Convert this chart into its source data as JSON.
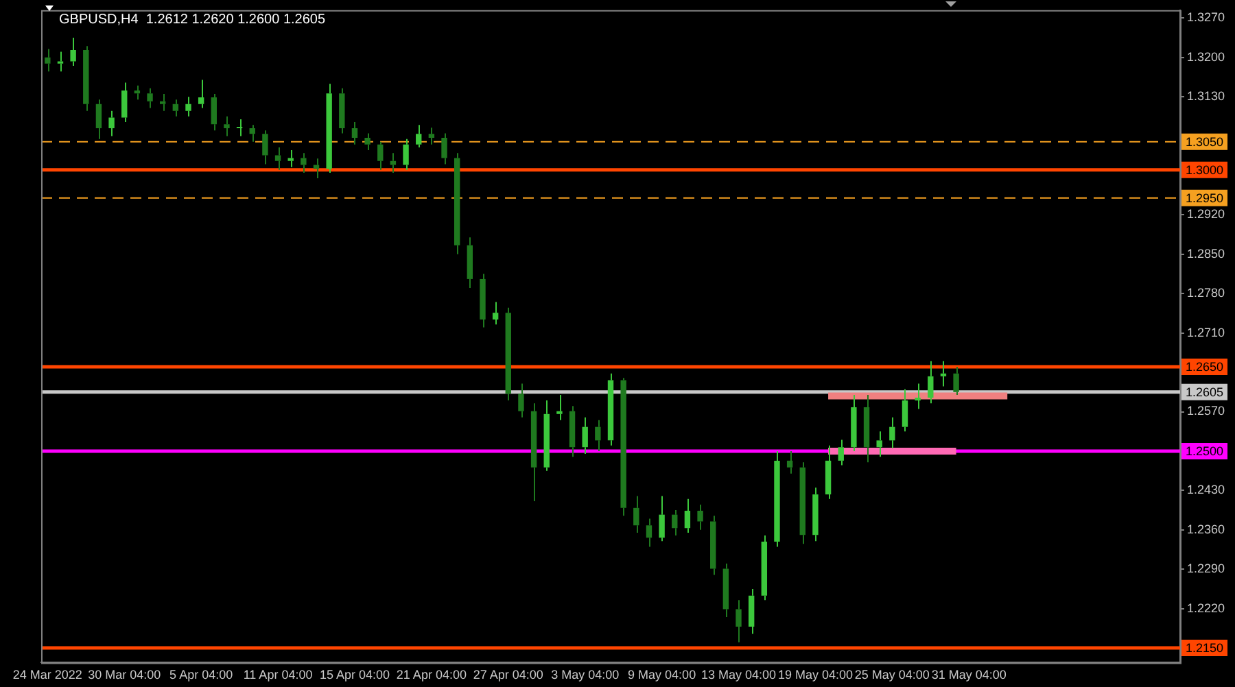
{
  "chart_data": {
    "type": "candlestick",
    "title": "GBPUSD,H4  1.2612 1.2620 1.2600 1.2605",
    "colors": [
      "#1f7a1f",
      "#3cc83c",
      "#3cc83c",
      "#1f7a1f",
      "#1f7a1f",
      "#3cc83c",
      "#3cc83c",
      "#1f7a1f",
      "#1f7a1f",
      "#1f7a1f",
      "#1f7a1f",
      "#3cc83c",
      "#3cc83c",
      "#1f7a1f",
      "#1f7a1f",
      "#3cc83c",
      "#1f7a1f",
      "#1f7a1f",
      "#1f7a1f",
      "#3cc83c",
      "#1f7a1f",
      "#1f7a1f",
      "#3cc83c",
      "#1f7a1f",
      "#1f7a1f",
      "#1f7a1f",
      "#1f7a1f",
      "#1f7a1f",
      "#3cc83c",
      "#3cc83c",
      "#1f7a1f",
      "#1f7a1f",
      "#1f7a1f",
      "#1f7a1f",
      "#1f7a1f",
      "#3cc83c",
      "#1f7a1f",
      "#1f7a1f",
      "#1f7a1f",
      "#3cc83c",
      "#3cc83c",
      "#1f7a1f",
      "#3cc83c",
      "#1f7a1f",
      "#3cc83c",
      "#1f7a1f",
      "#1f7a1f",
      "#1f7a1f",
      "#3cc83c",
      "#1f7a1f",
      "#3cc83c",
      "#1f7a1f",
      "#1f7a1f",
      "#1f7a1f",
      "#1f7a1f",
      "#3cc83c",
      "#3cc83c",
      "#3cc83c",
      "#1f7a1f",
      "#1f7a1f",
      "#3cc83c",
      "#3cc83c",
      "#3cc83c",
      "#3cc83c",
      "#1f7a1f",
      "#3cc83c",
      "#3cc83c",
      "#3cc83c",
      "#3cc83c",
      "#3cc83c",
      "#3cc83c",
      "#1f7a1f",
      null,
      null,
      null,
      null,
      null,
      null,
      null,
      null,
      null,
      null,
      null,
      null,
      null,
      null,
      null,
      null,
      null
    ],
    "categories": [
      "24 Mar 2022",
      null,
      null,
      null,
      null,
      null,
      "30 Mar 04:00",
      null,
      null,
      null,
      null,
      null,
      "5 Apr 04:00",
      null,
      null,
      null,
      null,
      null,
      "11 Apr 04:00",
      null,
      null,
      null,
      null,
      null,
      "15 Apr 04:00",
      null,
      null,
      null,
      null,
      null,
      "21 Apr 04:00",
      null,
      null,
      null,
      null,
      null,
      "27 Apr 04:00",
      null,
      null,
      null,
      null,
      null,
      "3 May 04:00",
      null,
      null,
      null,
      null,
      null,
      "9 May 04:00",
      null,
      null,
      null,
      null,
      null,
      "13 May 04:00",
      null,
      null,
      null,
      null,
      null,
      "19 May 04:00",
      null,
      null,
      null,
      null,
      null,
      "25 May 04:00",
      null,
      null,
      null,
      null,
      null,
      "31 May 04:00",
      null,
      null,
      null,
      null,
      null,
      null,
      null,
      null,
      null,
      null,
      null,
      null,
      null,
      null,
      null,
      null
    ],
    "ohlc": [
      [
        1.32,
        1.3215,
        1.3175,
        1.3189
      ],
      [
        1.3189,
        1.321,
        1.3175,
        1.3193
      ],
      [
        1.3193,
        1.3235,
        1.3185,
        1.3213
      ],
      [
        1.3213,
        1.322,
        1.3105,
        1.3117
      ],
      [
        1.3117,
        1.3125,
        1.3055,
        1.3074
      ],
      [
        1.3074,
        1.3105,
        1.306,
        1.3093
      ],
      [
        1.3093,
        1.3155,
        1.3085,
        1.3141
      ],
      [
        1.3141,
        1.315,
        1.3125,
        1.3136
      ],
      [
        1.3136,
        1.3145,
        1.311,
        1.3122
      ],
      [
        1.3122,
        1.3135,
        1.3105,
        1.3117
      ],
      [
        1.3117,
        1.3125,
        1.3095,
        1.3105
      ],
      [
        1.3105,
        1.313,
        1.3095,
        1.3117
      ],
      [
        1.3117,
        1.316,
        1.311,
        1.3129
      ],
      [
        1.3129,
        1.3135,
        1.307,
        1.3081
      ],
      [
        1.3081,
        1.3095,
        1.306,
        1.3074
      ],
      [
        1.3074,
        1.309,
        1.306,
        1.3074
      ],
      [
        1.3074,
        1.308,
        1.305,
        1.3064
      ],
      [
        1.3064,
        1.307,
        1.301,
        1.3026
      ],
      [
        1.3026,
        1.304,
        1.3,
        1.3016
      ],
      [
        1.3016,
        1.3035,
        1.3005,
        1.3021
      ],
      [
        1.3021,
        1.303,
        1.2995,
        1.3009
      ],
      [
        1.3009,
        1.302,
        1.2985,
        1.3002
      ],
      [
        1.3002,
        1.3153,
        1.2995,
        1.3136
      ],
      [
        1.3136,
        1.3145,
        1.3065,
        1.3074
      ],
      [
        1.3074,
        1.3085,
        1.3045,
        1.3057
      ],
      [
        1.3057,
        1.3065,
        1.3035,
        1.3045
      ],
      [
        1.3045,
        1.305,
        1.3,
        1.3016
      ],
      [
        1.3016,
        1.303,
        1.2995,
        1.3009
      ],
      [
        1.3009,
        1.3055,
        1.3,
        1.3045
      ],
      [
        1.3045,
        1.308,
        1.304,
        1.3064
      ],
      [
        1.3064,
        1.3075,
        1.3045,
        1.3057
      ],
      [
        1.3057,
        1.3065,
        1.301,
        1.3021
      ],
      [
        1.3021,
        1.303,
        1.285,
        1.2866
      ],
      [
        1.2866,
        1.288,
        1.279,
        1.2806
      ],
      [
        1.2806,
        1.2815,
        1.272,
        1.2734
      ],
      [
        1.2734,
        1.2765,
        1.2725,
        1.2746
      ],
      [
        1.2746,
        1.2755,
        1.259,
        1.2602
      ],
      [
        1.2602,
        1.262,
        1.256,
        1.2571
      ],
      [
        1.2571,
        1.2585,
        1.2411,
        1.2471
      ],
      [
        1.2471,
        1.259,
        1.2465,
        1.2566
      ],
      [
        1.2566,
        1.26,
        1.2555,
        1.2571
      ],
      [
        1.2571,
        1.258,
        1.249,
        1.2507
      ],
      [
        1.2507,
        1.256,
        1.2495,
        1.2543
      ],
      [
        1.2543,
        1.2555,
        1.25,
        1.2519
      ],
      [
        1.2519,
        1.2638,
        1.251,
        1.2626
      ],
      [
        1.2626,
        1.263,
        1.2385,
        1.2399
      ],
      [
        1.2399,
        1.242,
        1.2355,
        1.2368
      ],
      [
        1.2368,
        1.238,
        1.233,
        1.2346
      ],
      [
        1.2346,
        1.242,
        1.234,
        1.2387
      ],
      [
        1.2387,
        1.2395,
        1.235,
        1.2363
      ],
      [
        1.2363,
        1.2415,
        1.2355,
        1.2394
      ],
      [
        1.2394,
        1.2405,
        1.236,
        1.2375
      ],
      [
        1.2375,
        1.2385,
        1.228,
        1.2291
      ],
      [
        1.2291,
        1.23,
        1.2205,
        1.2219
      ],
      [
        1.2219,
        1.2235,
        1.216,
        1.2188
      ],
      [
        1.2188,
        1.2255,
        1.2175,
        1.2243
      ],
      [
        1.2243,
        1.235,
        1.2235,
        1.2339
      ],
      [
        1.2339,
        1.25,
        1.233,
        1.2483
      ],
      [
        1.2483,
        1.25,
        1.246,
        1.2471
      ],
      [
        1.2471,
        1.248,
        1.2335,
        1.2351
      ],
      [
        1.2351,
        1.2435,
        1.234,
        1.2423
      ],
      [
        1.2423,
        1.251,
        1.2415,
        1.2483
      ],
      [
        1.2483,
        1.252,
        1.2475,
        1.2507
      ],
      [
        1.2507,
        1.26,
        1.25,
        1.2578
      ],
      [
        1.2578,
        1.26,
        1.248,
        1.2507
      ],
      [
        1.2507,
        1.2535,
        1.249,
        1.2519
      ],
      [
        1.2519,
        1.256,
        1.2505,
        1.2543
      ],
      [
        1.2543,
        1.261,
        1.2535,
        1.259
      ],
      [
        1.259,
        1.262,
        1.2575,
        1.2595
      ],
      [
        1.2595,
        1.266,
        1.2585,
        1.2633
      ],
      [
        1.2633,
        1.266,
        1.2615,
        1.2638
      ],
      [
        1.2638,
        1.265,
        1.26,
        1.2605
      ],
      null,
      null,
      null,
      null,
      null,
      null,
      null,
      null,
      null,
      null,
      null,
      null,
      null,
      null,
      null,
      null,
      null
    ],
    "series": [
      {
        "type": "line",
        "color": "#f08080",
        "values": [
          null,
          null,
          null,
          null,
          null,
          null,
          null,
          null,
          null,
          null,
          null,
          null,
          null,
          null,
          null,
          null,
          null,
          null,
          null,
          null,
          null,
          null,
          null,
          null,
          null,
          null,
          null,
          null,
          null,
          null,
          null,
          null,
          null,
          null,
          null,
          null,
          null,
          null,
          null,
          null,
          null,
          null,
          null,
          null,
          null,
          null,
          null,
          null,
          null,
          null,
          null,
          null,
          null,
          null,
          null,
          null,
          null,
          null,
          null,
          null,
          null,
          1.2598,
          1.2598,
          1.2598,
          1.2598,
          1.2598,
          1.2598,
          1.2598,
          1.2598,
          1.2598,
          1.2598,
          1.2598,
          1.2598,
          1.2598,
          1.2598,
          1.2598,
          null,
          null,
          null,
          null,
          null,
          null,
          null,
          null,
          null,
          null,
          null,
          null,
          null
        ]
      },
      {
        "type": "line",
        "color": "#ff69b4",
        "values": [
          null,
          null,
          null,
          null,
          null,
          null,
          null,
          null,
          null,
          null,
          null,
          null,
          null,
          null,
          null,
          null,
          null,
          null,
          null,
          null,
          null,
          null,
          null,
          null,
          null,
          null,
          null,
          null,
          null,
          null,
          null,
          null,
          null,
          null,
          null,
          null,
          null,
          null,
          null,
          null,
          null,
          null,
          null,
          null,
          null,
          null,
          null,
          null,
          null,
          null,
          null,
          null,
          null,
          null,
          null,
          null,
          null,
          null,
          null,
          null,
          null,
          1.25,
          1.25,
          1.25,
          1.25,
          1.25,
          1.25,
          1.25,
          1.25,
          1.25,
          1.25,
          1.25,
          null,
          null,
          null,
          null,
          null,
          null,
          null,
          null,
          null,
          null,
          null,
          null,
          null,
          null,
          null,
          null,
          null
        ]
      }
    ],
    "ylim": [
      1.2124,
      1.3284
    ],
    "yticks": [
      {
        "value": 1.327,
        "label": "1.3270"
      },
      {
        "value": 1.32,
        "label": "1.3200"
      },
      {
        "value": 1.313,
        "label": "1.3130"
      },
      {
        "value": 1.306,
        "label": null
      },
      {
        "value": 1.299,
        "label": null
      },
      {
        "value": 1.292,
        "label": "1.2920"
      },
      {
        "value": 1.285,
        "label": "1.2850"
      },
      {
        "value": 1.278,
        "label": "1.2780"
      },
      {
        "value": 1.271,
        "label": "1.2710"
      },
      {
        "value": 1.264,
        "label": null
      },
      {
        "value": 1.257,
        "label": "1.2570"
      },
      {
        "value": 1.25,
        "label": null
      },
      {
        "value": 1.243,
        "label": "1.2430"
      },
      {
        "value": 1.236,
        "label": "1.2360"
      },
      {
        "value": 1.229,
        "label": "1.2290"
      },
      {
        "value": 1.222,
        "label": "1.2220"
      },
      {
        "value": 1.215,
        "label": null
      }
    ],
    "ref_lines": [
      {
        "axis": "y",
        "value": 1.305,
        "label": "1.3050",
        "color": "#f5a020",
        "line_style": "dashed"
      },
      {
        "axis": "y",
        "value": 1.3,
        "label": "1.3000",
        "color": "#ff4500",
        "line_style": "solid"
      },
      {
        "axis": "y",
        "value": 1.295,
        "label": "1.2950",
        "color": "#f5a020",
        "line_style": "dashed"
      },
      {
        "axis": "y",
        "value": 1.265,
        "label": "1.2650",
        "color": "#ff4500",
        "line_style": "solid"
      },
      {
        "axis": "y",
        "value": 1.2605,
        "label": "1.2605",
        "color": "#c8c8c8",
        "line_style": "solid"
      },
      {
        "axis": "y",
        "value": 1.25,
        "label": "1.2500",
        "color": "#ff00ff",
        "line_style": "solid"
      },
      {
        "axis": "y",
        "value": 1.215,
        "label": "1.2150",
        "color": "#ff4500",
        "line_style": "solid"
      }
    ],
    "grid": false,
    "legend": false
  }
}
